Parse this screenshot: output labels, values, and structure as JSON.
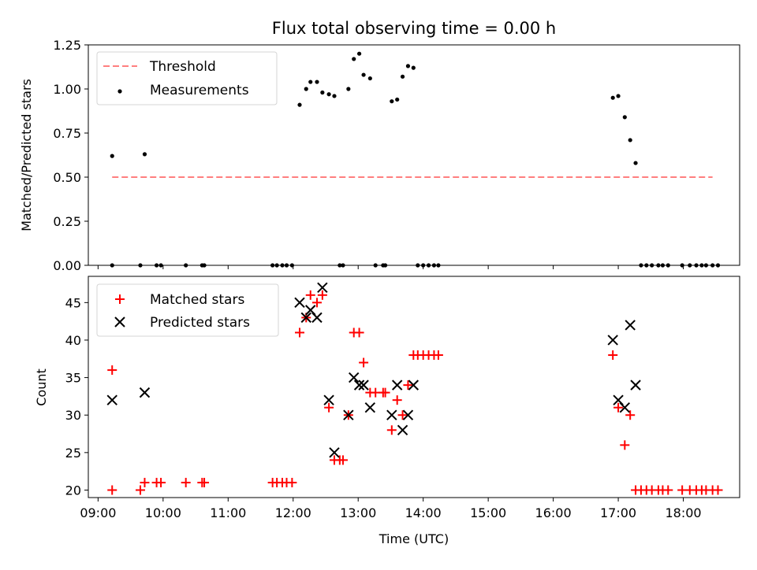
{
  "chart_data": [
    {
      "type": "scatter",
      "title": "Flux total observing time = 0.00 h",
      "xlabel": "",
      "ylabel": "Matched/Predicted stars",
      "xlim": [
        "08:51",
        "18:52"
      ],
      "ylim": [
        0,
        1.25
      ],
      "yticks": [
        "0.00",
        "0.25",
        "0.50",
        "0.75",
        "1.00",
        "1.25"
      ],
      "legend_position": "top-left",
      "threshold": {
        "name": "Threshold",
        "color": "#ff7f7f",
        "value": 0.5,
        "x_range": [
          "09:13",
          "18:27"
        ]
      },
      "series": [
        {
          "name": "Measurements",
          "color": "#000000",
          "points": [
            [
              "09:13",
              0
            ],
            [
              "09:13",
              0.62
            ],
            [
              "09:39",
              0
            ],
            [
              "09:43",
              0.63
            ],
            [
              "09:54",
              0
            ],
            [
              "09:58",
              0
            ],
            [
              "10:21",
              0
            ],
            [
              "10:36",
              0
            ],
            [
              "10:38",
              0
            ],
            [
              "11:41",
              0
            ],
            [
              "11:45",
              0
            ],
            [
              "11:50",
              0
            ],
            [
              "11:54",
              0
            ],
            [
              "11:59",
              0
            ],
            [
              "12:06",
              0.91
            ],
            [
              "12:12",
              1.0
            ],
            [
              "12:16",
              1.04
            ],
            [
              "12:22",
              1.04
            ],
            [
              "12:27",
              0.98
            ],
            [
              "12:33",
              0.97
            ],
            [
              "12:38",
              0.96
            ],
            [
              "12:43",
              0
            ],
            [
              "12:46",
              0
            ],
            [
              "12:51",
              1.0
            ],
            [
              "12:56",
              1.17
            ],
            [
              "13:01",
              1.2
            ],
            [
              "13:05",
              1.08
            ],
            [
              "13:11",
              1.06
            ],
            [
              "13:16",
              0
            ],
            [
              "13:23",
              0
            ],
            [
              "13:25",
              0
            ],
            [
              "13:31",
              0.93
            ],
            [
              "13:36",
              0.94
            ],
            [
              "13:41",
              1.07
            ],
            [
              "13:46",
              1.13
            ],
            [
              "13:51",
              1.12
            ],
            [
              "13:55",
              0
            ],
            [
              "14:00",
              0
            ],
            [
              "14:05",
              0
            ],
            [
              "14:10",
              0
            ],
            [
              "14:14",
              0
            ],
            [
              "16:55",
              0.95
            ],
            [
              "17:00",
              0.96
            ],
            [
              "17:06",
              0.84
            ],
            [
              "17:11",
              0.71
            ],
            [
              "17:16",
              0.58
            ],
            [
              "17:21",
              0
            ],
            [
              "17:26",
              0
            ],
            [
              "17:31",
              0
            ],
            [
              "17:37",
              0
            ],
            [
              "17:41",
              0
            ],
            [
              "17:46",
              0
            ],
            [
              "17:59",
              0
            ],
            [
              "18:06",
              0
            ],
            [
              "18:12",
              0
            ],
            [
              "18:17",
              0
            ],
            [
              "18:21",
              0
            ],
            [
              "18:27",
              0
            ],
            [
              "18:32",
              0
            ]
          ]
        }
      ]
    },
    {
      "type": "scatter",
      "title": "",
      "xlabel": "Time (UTC)",
      "ylabel": "Count",
      "xlim": [
        "08:51",
        "18:52"
      ],
      "ylim": [
        19,
        48.5
      ],
      "yticks": [
        "20",
        "25",
        "30",
        "35",
        "40",
        "45"
      ],
      "xticks": [
        "09:00",
        "10:00",
        "11:00",
        "12:00",
        "13:00",
        "14:00",
        "15:00",
        "16:00",
        "17:00",
        "18:00"
      ],
      "legend_position": "top-left",
      "series": [
        {
          "name": "Matched stars",
          "color": "#ff0000",
          "marker": "+",
          "points": [
            [
              "09:13",
              36
            ],
            [
              "09:13",
              20
            ],
            [
              "09:39",
              20
            ],
            [
              "09:43",
              21
            ],
            [
              "09:54",
              21
            ],
            [
              "09:58",
              21
            ],
            [
              "10:21",
              21
            ],
            [
              "10:36",
              21
            ],
            [
              "10:38",
              21
            ],
            [
              "11:41",
              21
            ],
            [
              "11:45",
              21
            ],
            [
              "11:50",
              21
            ],
            [
              "11:54",
              21
            ],
            [
              "11:59",
              21
            ],
            [
              "12:06",
              41
            ],
            [
              "12:12",
              43
            ],
            [
              "12:16",
              46
            ],
            [
              "12:22",
              45
            ],
            [
              "12:27",
              46
            ],
            [
              "12:33",
              31
            ],
            [
              "12:38",
              24
            ],
            [
              "12:43",
              24
            ],
            [
              "12:46",
              24
            ],
            [
              "12:51",
              30
            ],
            [
              "12:56",
              41
            ],
            [
              "13:01",
              41
            ],
            [
              "13:05",
              37
            ],
            [
              "13:11",
              33
            ],
            [
              "13:16",
              33
            ],
            [
              "13:23",
              33
            ],
            [
              "13:25",
              33
            ],
            [
              "13:31",
              28
            ],
            [
              "13:36",
              32
            ],
            [
              "13:41",
              30
            ],
            [
              "13:46",
              34
            ],
            [
              "13:51",
              38
            ],
            [
              "13:55",
              38
            ],
            [
              "14:00",
              38
            ],
            [
              "14:05",
              38
            ],
            [
              "14:10",
              38
            ],
            [
              "14:14",
              38
            ],
            [
              "16:55",
              38
            ],
            [
              "17:00",
              31
            ],
            [
              "17:06",
              26
            ],
            [
              "17:11",
              30
            ],
            [
              "17:16",
              20
            ],
            [
              "17:21",
              20
            ],
            [
              "17:26",
              20
            ],
            [
              "17:31",
              20
            ],
            [
              "17:37",
              20
            ],
            [
              "17:41",
              20
            ],
            [
              "17:46",
              20
            ],
            [
              "17:59",
              20
            ],
            [
              "18:06",
              20
            ],
            [
              "18:12",
              20
            ],
            [
              "18:17",
              20
            ],
            [
              "18:21",
              20
            ],
            [
              "18:27",
              20
            ],
            [
              "18:32",
              20
            ]
          ]
        },
        {
          "name": "Predicted stars",
          "color": "#000000",
          "marker": "x",
          "points": [
            [
              "09:13",
              32
            ],
            [
              "09:43",
              33
            ],
            [
              "12:06",
              45
            ],
            [
              "12:12",
              43
            ],
            [
              "12:16",
              44
            ],
            [
              "12:22",
              43
            ],
            [
              "12:27",
              47
            ],
            [
              "12:33",
              32
            ],
            [
              "12:38",
              25
            ],
            [
              "12:51",
              30
            ],
            [
              "12:56",
              35
            ],
            [
              "13:01",
              34
            ],
            [
              "13:05",
              34
            ],
            [
              "13:11",
              31
            ],
            [
              "13:31",
              30
            ],
            [
              "13:36",
              34
            ],
            [
              "13:41",
              28
            ],
            [
              "13:46",
              30
            ],
            [
              "13:51",
              34
            ],
            [
              "16:55",
              40
            ],
            [
              "17:00",
              32
            ],
            [
              "17:06",
              31
            ],
            [
              "17:11",
              42
            ],
            [
              "17:16",
              34
            ]
          ]
        }
      ]
    }
  ]
}
